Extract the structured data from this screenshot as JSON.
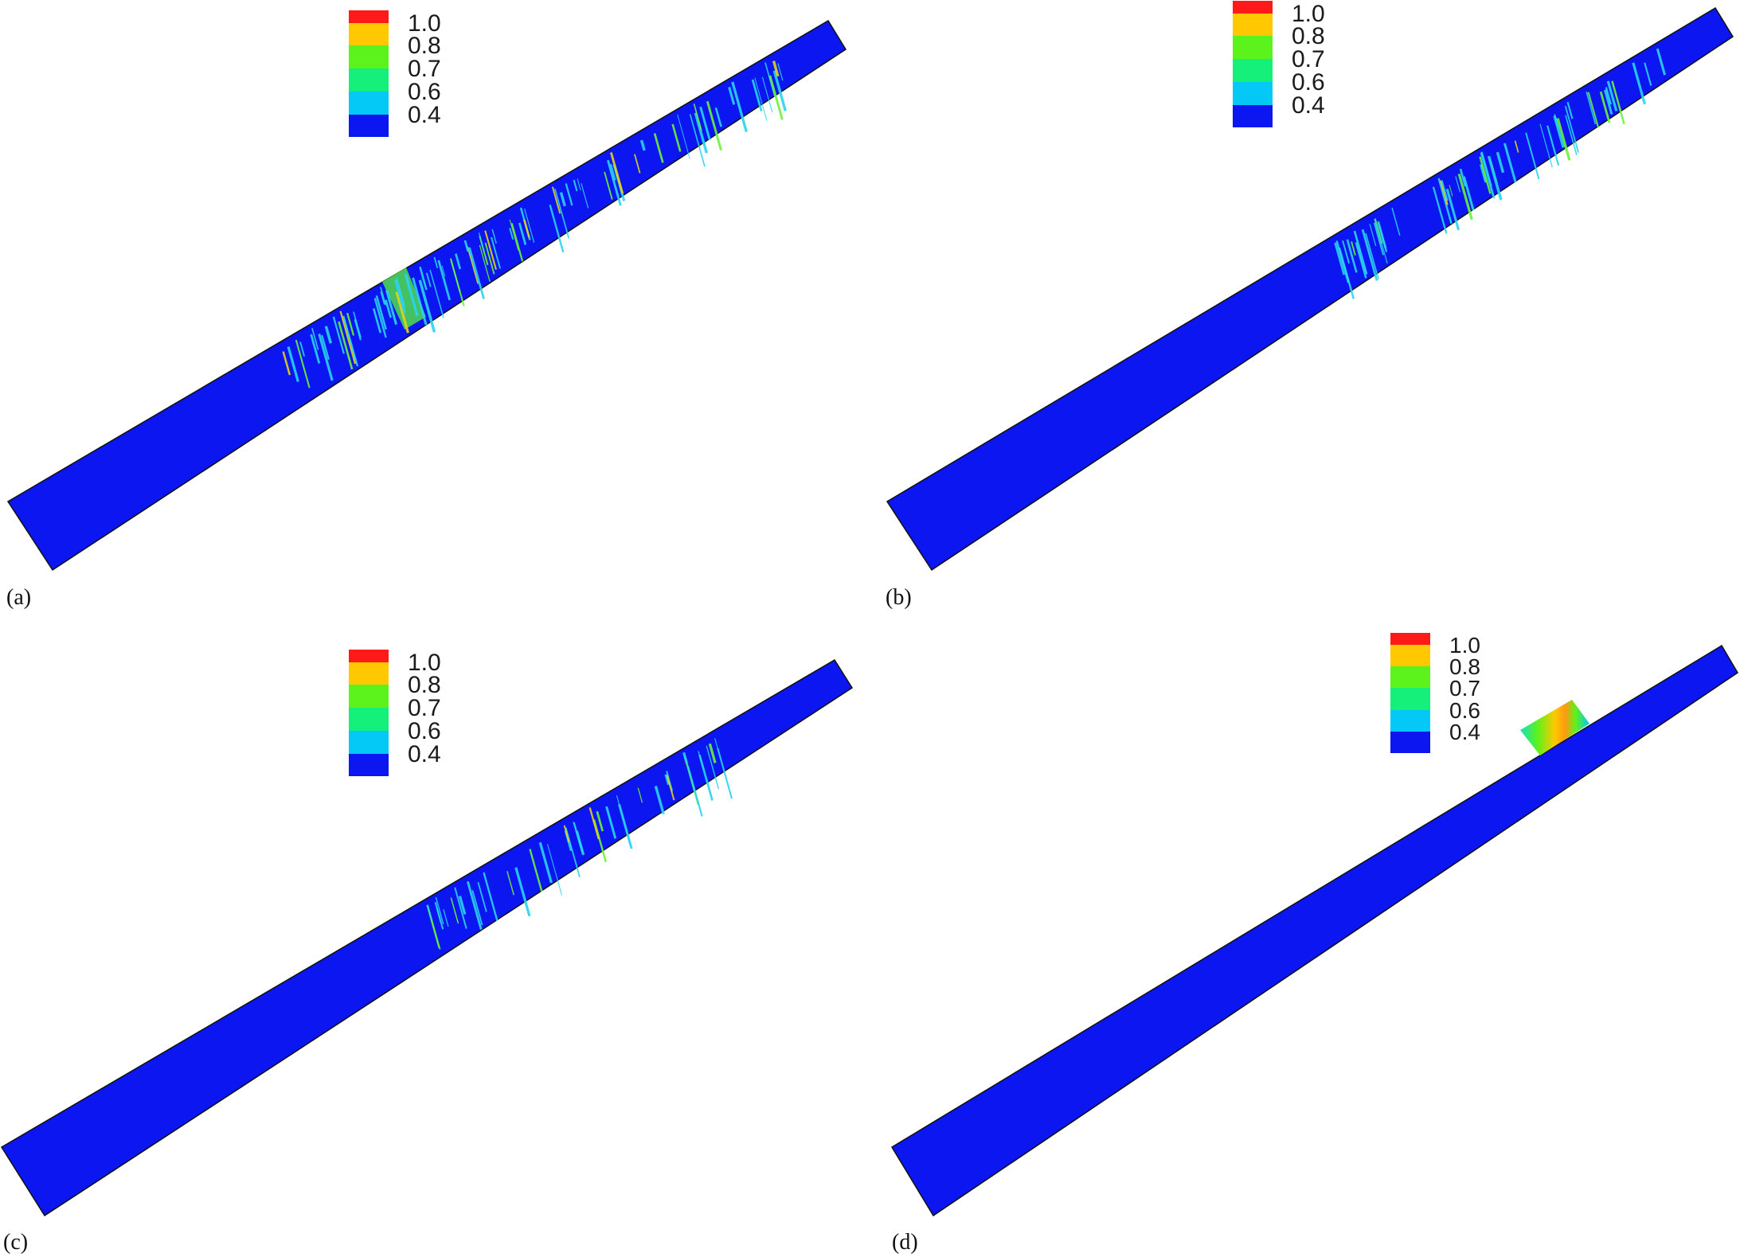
{
  "colorbar": {
    "ticks": [
      "1.0",
      "0.8",
      "0.7",
      "0.6",
      "0.4"
    ],
    "colors": [
      "#ff1a1a",
      "#ffc800",
      "#5cf21b",
      "#14f07a",
      "#04c8f5",
      "#0b16f0"
    ]
  },
  "colors": {
    "background": "#0b16f0",
    "outline": "#111111",
    "streak_cyan": "#2ad4f0",
    "streak_green": "#6cf23a",
    "streak_yellow": "#e8d21a"
  },
  "panels": [
    {
      "label": "(a)"
    },
    {
      "label": "(b)"
    },
    {
      "label": "(c)"
    },
    {
      "label": "(d)"
    }
  ]
}
